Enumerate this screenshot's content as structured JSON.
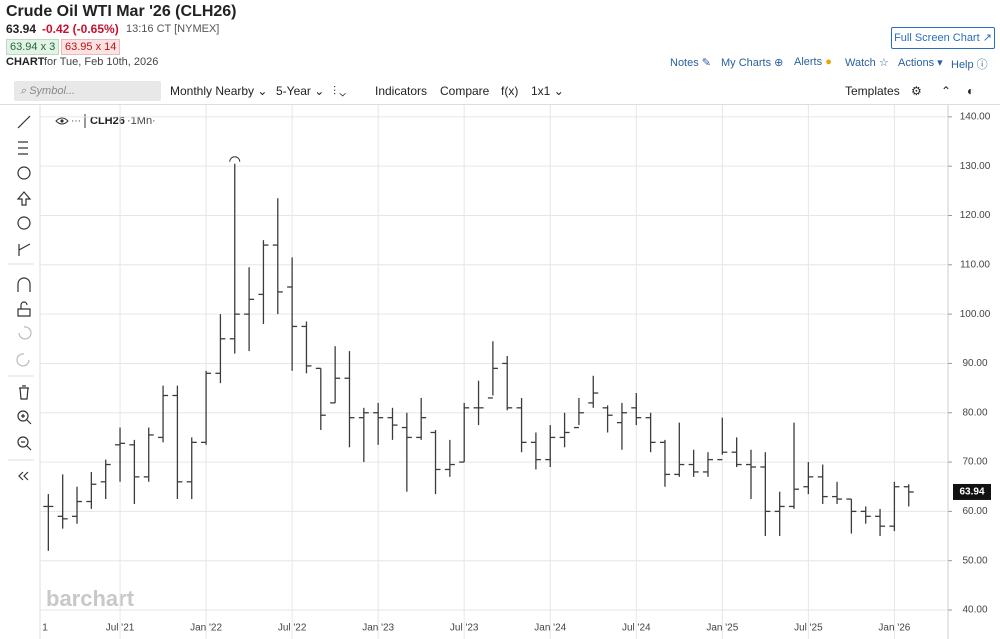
{
  "header": {
    "title": "Crude Oil WTI Mar '26 (CLH26)",
    "last": "63.94",
    "change": "-0.42 (-0.65%)",
    "time": "13:16 CT [NYMEX]",
    "bid": "63.94 x 3",
    "ask": "63.95 x 14",
    "chart_label": "CHART",
    "chart_date": "for Tue, Feb 10th, 2026",
    "full_screen": "Full Screen Chart",
    "links": [
      "Notes",
      "My Charts",
      "Alerts",
      "Watch",
      "Actions",
      "Help"
    ]
  },
  "toolbar": {
    "symbol_placeholder": "Symbol...",
    "items": [
      "Monthly Nearby",
      "5-Year",
      "Indicators",
      "Compare",
      "f(x)",
      "1x1"
    ],
    "templates": "Templates"
  },
  "watermark": "barchart",
  "chart_data": {
    "type": "ohlc",
    "symbol": "CLH26",
    "interval": "·1Mn·",
    "color": "#3c3c3c",
    "grid": true,
    "categories": [
      "1",
      null,
      null,
      null,
      null,
      null,
      "Jul '21",
      null,
      null,
      null,
      null,
      null,
      "Jan '22",
      null,
      null,
      null,
      null,
      null,
      "Jul '22",
      null,
      null,
      null,
      null,
      null,
      "Jan '23",
      null,
      null,
      null,
      null,
      null,
      "Jul '23",
      null,
      null,
      null,
      null,
      null,
      "Jan '24",
      null,
      null,
      null,
      null,
      null,
      "Jul '24",
      null,
      null,
      null,
      null,
      null,
      "Jan '25",
      null,
      null,
      null,
      null,
      null,
      "Jul '25",
      null,
      null,
      null,
      null,
      null,
      "Jan '26",
      null
    ],
    "open": [
      null,
      61,
      59,
      59,
      62,
      66,
      73.5,
      73.5,
      67,
      75,
      83.5,
      66,
      74,
      88,
      95,
      100,
      104,
      114,
      105.5,
      97.5,
      89,
      82,
      87,
      79,
      80,
      79,
      77,
      75,
      76,
      68.5,
      70,
      81,
      83,
      90,
      81,
      74,
      70.5,
      75,
      77,
      82,
      81,
      78,
      81,
      79,
      74,
      67.5,
      69.5,
      68,
      70.5,
      72,
      69.5,
      69,
      60,
      61,
      65,
      67,
      63,
      62.5,
      60,
      59,
      57,
      65
    ],
    "high": [
      null,
      63.5,
      67.5,
      65,
      68,
      70.5,
      77,
      74.5,
      77,
      85.5,
      85.5,
      75,
      88.5,
      100,
      130.5,
      109.5,
      115,
      123.5,
      111.5,
      98.5,
      89,
      93.5,
      92.5,
      81,
      82,
      81,
      80,
      83,
      76.5,
      74.5,
      82,
      86.5,
      94.5,
      91.5,
      83,
      76,
      77.5,
      80,
      83,
      87.5,
      81.5,
      82,
      84,
      80,
      74.5,
      78,
      72.5,
      72,
      79,
      75,
      72.5,
      72,
      64,
      78,
      70,
      69.5,
      66,
      62.5,
      61,
      60.5,
      66,
      65.5
    ],
    "low": [
      null,
      52,
      56.5,
      57.5,
      60.5,
      62.5,
      66,
      61.5,
      66,
      74,
      62.5,
      62.5,
      73.5,
      86,
      92,
      92.5,
      98,
      100,
      88.5,
      88,
      76.5,
      82,
      73,
      70,
      73.5,
      74.5,
      64,
      74.5,
      63.5,
      67,
      70,
      77.5,
      83.5,
      80.5,
      72,
      68.5,
      69,
      73,
      77.5,
      81,
      76,
      72.5,
      77.5,
      72,
      65,
      67,
      67,
      67,
      71.5,
      69,
      62.5,
      55,
      55,
      60.5,
      63.5,
      61.5,
      61.5,
      55.5,
      57.5,
      55,
      56,
      61
    ],
    "close": [
      null,
      61,
      58.5,
      62,
      65.5,
      69.5,
      73.8,
      67,
      75.5,
      83.5,
      66,
      74,
      88,
      95,
      100,
      103,
      114,
      104.5,
      97.5,
      89.5,
      79.5,
      87,
      79,
      80,
      79,
      77.5,
      75,
      79,
      68.5,
      69.5,
      81,
      81,
      89,
      81,
      74,
      70.5,
      75,
      76,
      80,
      84,
      79.5,
      80,
      79,
      74,
      67.5,
      69.5,
      68,
      70.5,
      72,
      69.5,
      69,
      60,
      61,
      64.5,
      67,
      63,
      62.5,
      60,
      59,
      57,
      65,
      63.94
    ],
    "ylim": [
      39.6,
      142.2
    ],
    "yticks": [
      {
        "value": 40,
        "label": "40.00"
      },
      {
        "value": 50,
        "label": "50.00"
      },
      {
        "value": 60,
        "label": "60.00"
      },
      {
        "value": 70,
        "label": "70.00"
      },
      {
        "value": 80,
        "label": "80.00"
      },
      {
        "value": 90,
        "label": "90.00"
      },
      {
        "value": 100,
        "label": "100.00"
      },
      {
        "value": 110,
        "label": "110.00"
      },
      {
        "value": 120,
        "label": "120.00"
      },
      {
        "value": 130,
        "label": "130.00"
      },
      {
        "value": 140,
        "label": "140.00"
      }
    ]
  }
}
